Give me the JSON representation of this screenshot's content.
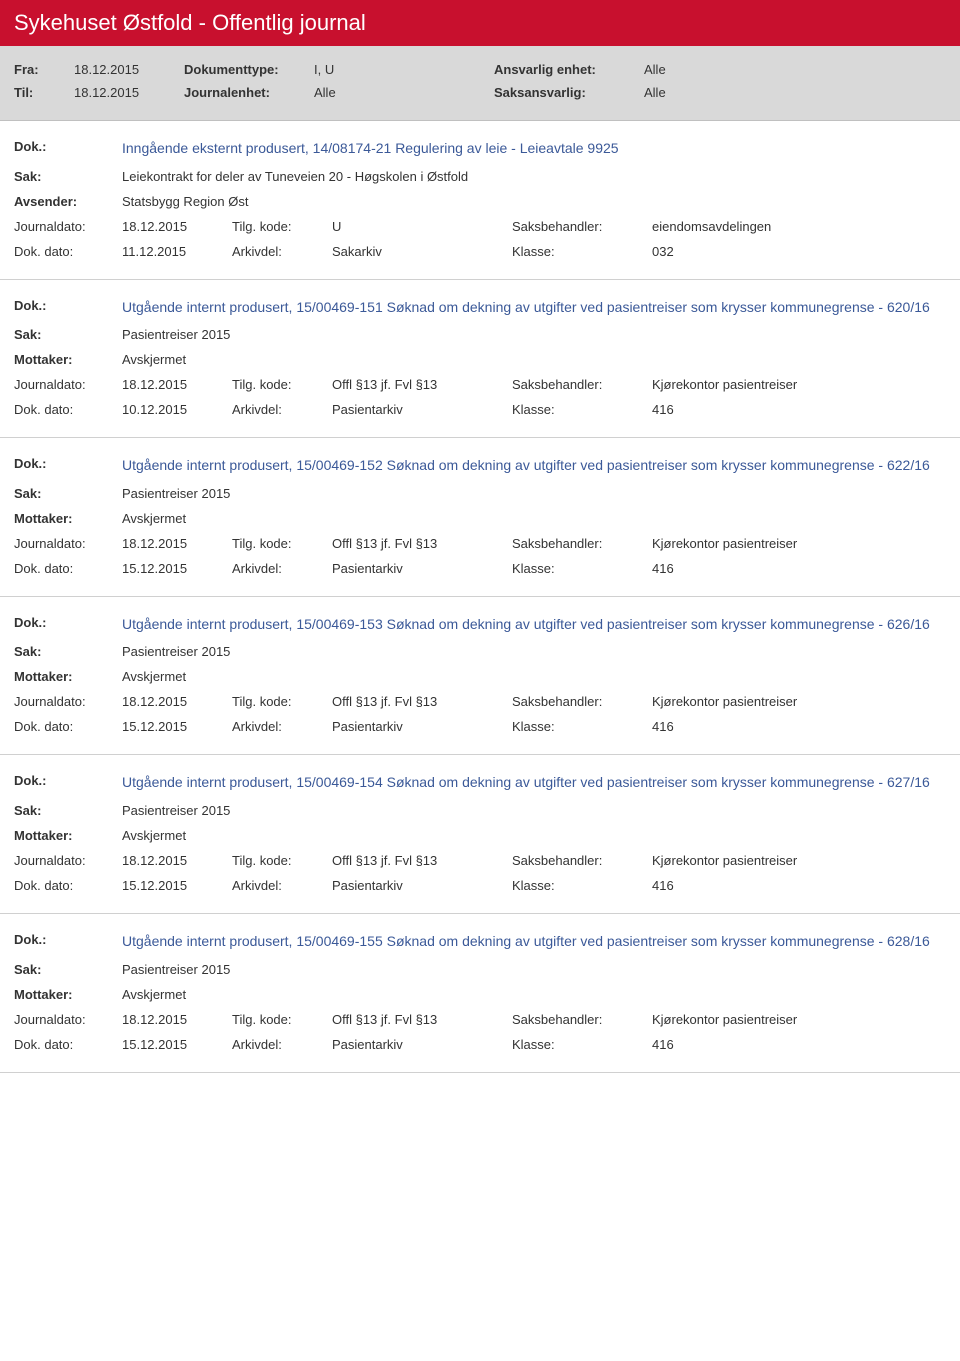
{
  "header": {
    "title": "Sykehuset Østfold - Offentlig journal",
    "fra_label": "Fra:",
    "fra_value": "18.12.2015",
    "til_label": "Til:",
    "til_value": "18.12.2015",
    "doktype_label": "Dokumenttype:",
    "doktype_value": "I, U",
    "journalenhet_label": "Journalenhet:",
    "journalenhet_value": "Alle",
    "ansvarlig_label": "Ansvarlig enhet:",
    "ansvarlig_value": "Alle",
    "saksansvarlig_label": "Saksansvarlig:",
    "saksansvarlig_value": "Alle"
  },
  "labels": {
    "dok": "Dok.:",
    "sak": "Sak:",
    "avsender": "Avsender:",
    "mottaker": "Mottaker:",
    "journaldato": "Journaldato:",
    "dokdato": "Dok. dato:",
    "tilgkode": "Tilg. kode:",
    "arkivdel": "Arkivdel:",
    "saksbehandler": "Saksbehandler:",
    "klasse": "Klasse:"
  },
  "entries": [
    {
      "dok": "Inngående eksternt produsert, 14/08174-21 Regulering av leie - Leieavtale 9925",
      "sak": "Leiekontrakt for deler av Tuneveien 20 - Høgskolen i Østfold",
      "party_label": "Avsender:",
      "party_value": "Statsbygg Region Øst",
      "journaldato": "18.12.2015",
      "tilgkode": "U",
      "saksbehandler": "eiendomsavdelingen",
      "dokdato": "11.12.2015",
      "arkivdel": "Sakarkiv",
      "klasse": "032"
    },
    {
      "dok": "Utgående internt produsert, 15/00469-151 Søknad om dekning av utgifter ved pasientreiser som krysser kommunegrense - 620/16",
      "sak": "Pasientreiser 2015",
      "party_label": "Mottaker:",
      "party_value": "Avskjermet",
      "journaldato": "18.12.2015",
      "tilgkode": "Offl §13 jf. Fvl §13",
      "saksbehandler": "Kjørekontor pasientreiser",
      "dokdato": "10.12.2015",
      "arkivdel": "Pasientarkiv",
      "klasse": "416"
    },
    {
      "dok": "Utgående internt produsert, 15/00469-152 Søknad om dekning av utgifter ved pasientreiser som krysser kommunegrense - 622/16",
      "sak": "Pasientreiser 2015",
      "party_label": "Mottaker:",
      "party_value": "Avskjermet",
      "journaldato": "18.12.2015",
      "tilgkode": "Offl §13 jf. Fvl §13",
      "saksbehandler": "Kjørekontor pasientreiser",
      "dokdato": "15.12.2015",
      "arkivdel": "Pasientarkiv",
      "klasse": "416"
    },
    {
      "dok": "Utgående internt produsert, 15/00469-153 Søknad om dekning av utgifter ved pasientreiser som krysser kommunegrense - 626/16",
      "sak": "Pasientreiser 2015",
      "party_label": "Mottaker:",
      "party_value": "Avskjermet",
      "journaldato": "18.12.2015",
      "tilgkode": "Offl §13 jf. Fvl §13",
      "saksbehandler": "Kjørekontor pasientreiser",
      "dokdato": "15.12.2015",
      "arkivdel": "Pasientarkiv",
      "klasse": "416"
    },
    {
      "dok": "Utgående internt produsert, 15/00469-154 Søknad om dekning av utgifter ved pasientreiser som krysser kommunegrense - 627/16",
      "sak": "Pasientreiser 2015",
      "party_label": "Mottaker:",
      "party_value": "Avskjermet",
      "journaldato": "18.12.2015",
      "tilgkode": "Offl §13 jf. Fvl §13",
      "saksbehandler": "Kjørekontor pasientreiser",
      "dokdato": "15.12.2015",
      "arkivdel": "Pasientarkiv",
      "klasse": "416"
    },
    {
      "dok": "Utgående internt produsert, 15/00469-155 Søknad om dekning av utgifter ved pasientreiser som krysser kommunegrense - 628/16",
      "sak": "Pasientreiser 2015",
      "party_label": "Mottaker:",
      "party_value": "Avskjermet",
      "journaldato": "18.12.2015",
      "tilgkode": "Offl §13 jf. Fvl §13",
      "saksbehandler": "Kjørekontor pasientreiser",
      "dokdato": "15.12.2015",
      "arkivdel": "Pasientarkiv",
      "klasse": "416"
    }
  ]
}
